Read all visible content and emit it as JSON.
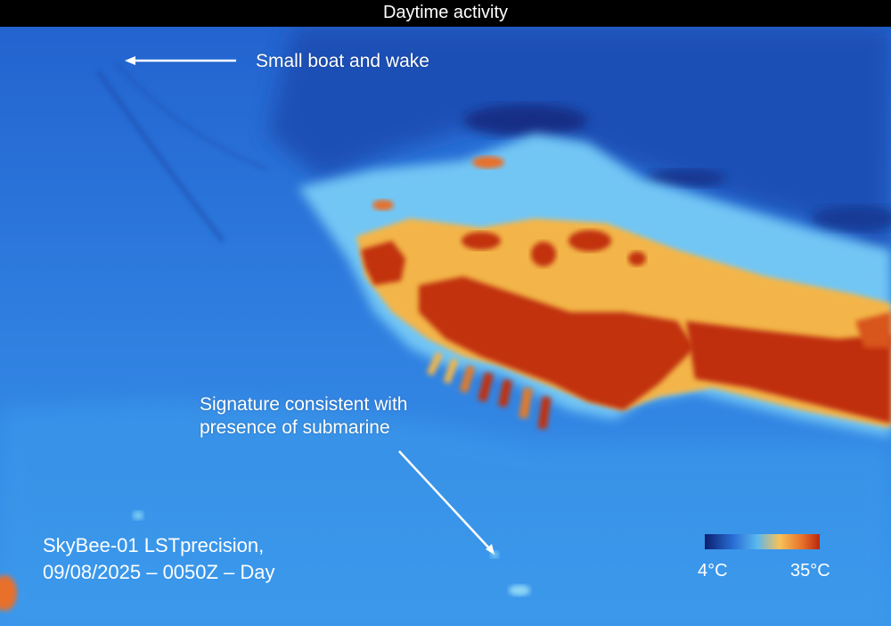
{
  "header": {
    "title": "Daytime activity"
  },
  "annotations": {
    "boat_label": "Small boat and wake",
    "submarine_label_line1": "Signature consistent with",
    "submarine_label_line2": "presence of submarine"
  },
  "caption": {
    "line1": "SkyBee-01 LSTprecision,",
    "line2": "09/08/2025 – 0050Z – Day"
  },
  "legend": {
    "min_label": "4°C",
    "max_label": "35°C",
    "min_value": 4,
    "max_value": 35,
    "colors": [
      "#0b1f6e",
      "#2a6fd6",
      "#58b6f0",
      "#f6c25a",
      "#e8702a",
      "#b8280c"
    ]
  },
  "palette": {
    "sea": "#2f7fe0",
    "deep_sea": "#1e4fb8",
    "cold": "#6fc3f5",
    "warm": "#f2a93b",
    "hot": "#c23a10"
  }
}
